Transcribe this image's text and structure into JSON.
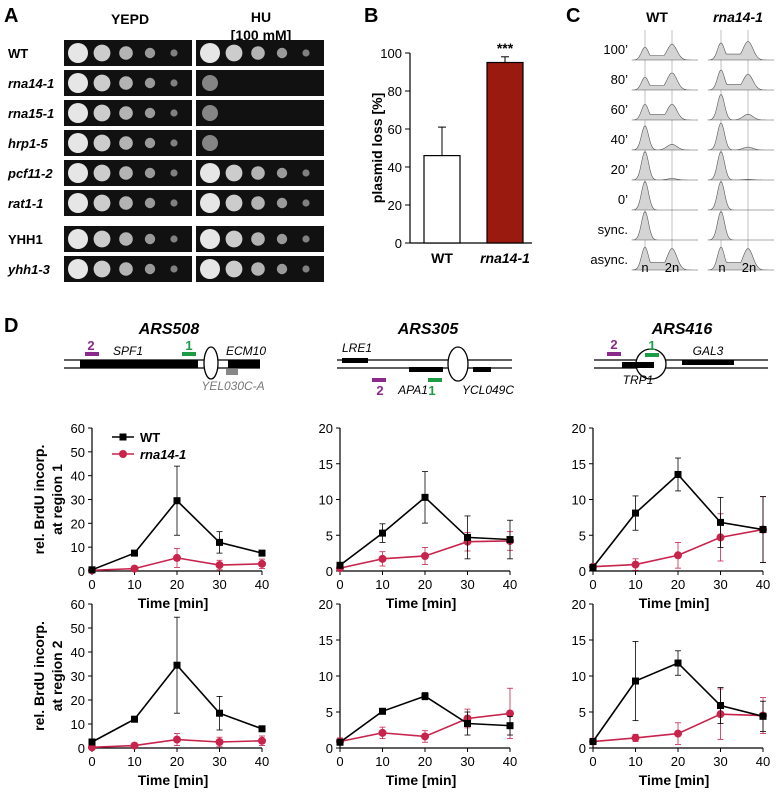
{
  "panel_letters": [
    "A",
    "B",
    "C",
    "D"
  ],
  "panel_a": {
    "col_headers": [
      "YEPD",
      "HU",
      "[100 mM]"
    ],
    "strains": [
      "WT",
      "rna14-1",
      "rna15-1",
      "hrp1-5",
      "pcf11-2",
      "rat1-1",
      "YHH1",
      "yhh1-3"
    ],
    "italic": [
      false,
      true,
      true,
      true,
      true,
      true,
      false,
      true
    ],
    "yepd_growth": [
      5,
      5,
      5,
      5,
      5,
      5,
      5,
      5
    ],
    "hu_growth": [
      5,
      1,
      1,
      1,
      5,
      5,
      5,
      5
    ]
  },
  "panel_c": {
    "col_labels": [
      "WT",
      "rna14-1"
    ],
    "row_labels": [
      "100’",
      "80’",
      "60’",
      "40’",
      "20’",
      "0’",
      "sync.",
      "async."
    ],
    "x_labels": [
      "n",
      "2n"
    ],
    "profiles_wt": [
      {
        "g1": 0.45,
        "g2": 0.55
      },
      {
        "g1": 0.45,
        "g2": 0.6
      },
      {
        "g1": 0.55,
        "g2": 0.55
      },
      {
        "g1": 0.85,
        "g2": 0.2
      },
      {
        "g1": 1.0,
        "g2": 0.05
      },
      {
        "g1": 1.0,
        "g2": 0.0
      },
      {
        "g1": 1.0,
        "g2": 0.0
      },
      {
        "g1": 0.8,
        "g2": 0.75
      }
    ],
    "profiles_rna14": [
      {
        "g1": 0.6,
        "g2": 0.65
      },
      {
        "g1": 0.7,
        "g2": 0.55
      },
      {
        "g1": 0.9,
        "g2": 0.2
      },
      {
        "g1": 0.95,
        "g2": 0.1
      },
      {
        "g1": 1.0,
        "g2": 0.02
      },
      {
        "g1": 1.0,
        "g2": 0.0
      },
      {
        "g1": 1.0,
        "g2": 0.0
      },
      {
        "g1": 0.8,
        "g2": 0.75
      }
    ]
  },
  "panel_d": {
    "loci": [
      {
        "name": "ARS508",
        "genes": [
          "SPF1",
          "ECM10",
          "YEL030C-A"
        ],
        "regions": [
          "2",
          "1"
        ]
      },
      {
        "name": "ARS305",
        "genes": [
          "LRE1",
          "APA1",
          "YCL049C"
        ],
        "regions": [
          "2",
          "1"
        ]
      },
      {
        "name": "ARS416",
        "genes": [
          "GAL3",
          "TRP1"
        ],
        "regions": [
          "2",
          "1"
        ]
      }
    ]
  },
  "colors": {
    "wt": "#000000",
    "rna14": "#c8234b",
    "bar_rna14": "#9b1a10",
    "region1": "#1d9b45",
    "region2": "#8a2a8c",
    "histo_fill": "#d4d4d4"
  },
  "chart_data": [
    {
      "type": "bar",
      "panel": "B",
      "categories": [
        "WT",
        "rna14-1"
      ],
      "values": [
        46,
        95
      ],
      "errors": [
        15,
        3
      ],
      "ylabel": "plasmid loss [%]",
      "ylim": [
        0,
        100
      ],
      "yticks": [
        "0",
        "20",
        "40",
        "60",
        "80",
        "100"
      ],
      "annotation": "***",
      "grid": false
    },
    {
      "type": "line",
      "panel": "D",
      "x": [
        0,
        10,
        20,
        30,
        40
      ],
      "xlabel": "Time [min]",
      "legend": [
        "WT",
        "rna14-1"
      ],
      "legend_position": "top-left",
      "row_ylabels": [
        [
          "rel. BrdU incorp.",
          "at region 1"
        ],
        [
          "rel. BrdU incorp.",
          "at region 2"
        ]
      ],
      "panels": [
        {
          "locus": "ARS508",
          "region": "1",
          "ylim": [
            0,
            60
          ],
          "yticks": [
            "0",
            "10",
            "20",
            "30",
            "40",
            "50",
            "60"
          ],
          "series": [
            {
              "name": "WT",
              "values": [
                0.5,
                7.5,
                29.5,
                12,
                7.5
              ],
              "errors": [
                0.5,
                1,
                14.5,
                4.5,
                1
              ]
            },
            {
              "name": "rna14-1",
              "values": [
                0.3,
                1,
                5.5,
                2.5,
                3
              ],
              "errors": [
                0.3,
                0.5,
                4,
                2,
                2
              ]
            }
          ]
        },
        {
          "locus": "ARS305",
          "region": "1",
          "ylim": [
            0,
            20
          ],
          "yticks": [
            "0",
            "5",
            "10",
            "15",
            "20"
          ],
          "series": [
            {
              "name": "WT",
              "values": [
                0.8,
                5.3,
                10.3,
                4.7,
                4.4
              ],
              "errors": [
                0.3,
                1.3,
                3.6,
                3,
                2.7
              ]
            },
            {
              "name": "rna14-1",
              "values": [
                0.4,
                1.7,
                2.1,
                4.1,
                4.2
              ],
              "errors": [
                0.2,
                1,
                1.2,
                1.3,
                1.3
              ]
            }
          ]
        },
        {
          "locus": "ARS416",
          "region": "1",
          "ylim": [
            0,
            20
          ],
          "yticks": [
            "0",
            "5",
            "10",
            "15",
            "20"
          ],
          "series": [
            {
              "name": "WT",
              "values": [
                0.5,
                8.1,
                13.5,
                6.8,
                5.8
              ],
              "errors": [
                0.3,
                2.4,
                2.3,
                3.5,
                4.6
              ]
            },
            {
              "name": "rna14-1",
              "values": [
                0.6,
                0.9,
                2.2,
                4.7,
                5.8
              ],
              "errors": [
                0.3,
                0.8,
                1.8,
                3.3,
                4.6
              ]
            }
          ]
        },
        {
          "locus": "ARS508",
          "region": "2",
          "ylim": [
            0,
            60
          ],
          "yticks": [
            "0",
            "10",
            "20",
            "30",
            "40",
            "50",
            "60"
          ],
          "series": [
            {
              "name": "WT",
              "values": [
                2.5,
                12,
                34.5,
                14.5,
                8
              ],
              "errors": [
                1,
                1,
                20,
                7,
                1
              ]
            },
            {
              "name": "rna14-1",
              "values": [
                0.3,
                1,
                3.5,
                2.5,
                3
              ],
              "errors": [
                0.3,
                0.8,
                2.5,
                2,
                2
              ]
            }
          ]
        },
        {
          "locus": "ARS305",
          "region": "2",
          "ylim": [
            0,
            20
          ],
          "yticks": [
            "0",
            "5",
            "10",
            "15",
            "20"
          ],
          "series": [
            {
              "name": "WT",
              "values": [
                0.8,
                5.1,
                7.2,
                3.4,
                3.1
              ],
              "errors": [
                0.3,
                0.4,
                0.5,
                1.6,
                1.3
              ]
            },
            {
              "name": "rna14-1",
              "values": [
                0.9,
                2.1,
                1.6,
                4.1,
                4.8
              ],
              "errors": [
                0.5,
                0.8,
                0.8,
                1.3,
                3.5
              ]
            }
          ]
        },
        {
          "locus": "ARS416",
          "region": "2",
          "ylim": [
            0,
            20
          ],
          "yticks": [
            "0",
            "5",
            "10",
            "15",
            "20"
          ],
          "series": [
            {
              "name": "WT",
              "values": [
                0.9,
                9.3,
                11.8,
                5.9,
                4.4
              ],
              "errors": [
                0.3,
                5.5,
                1.7,
                2.5,
                2.1
              ]
            },
            {
              "name": "rna14-1",
              "values": [
                0.9,
                1.4,
                2.0,
                4.7,
                4.5
              ],
              "errors": [
                0.3,
                0.5,
                1.5,
                3.5,
                2.5
              ]
            }
          ]
        }
      ]
    }
  ]
}
